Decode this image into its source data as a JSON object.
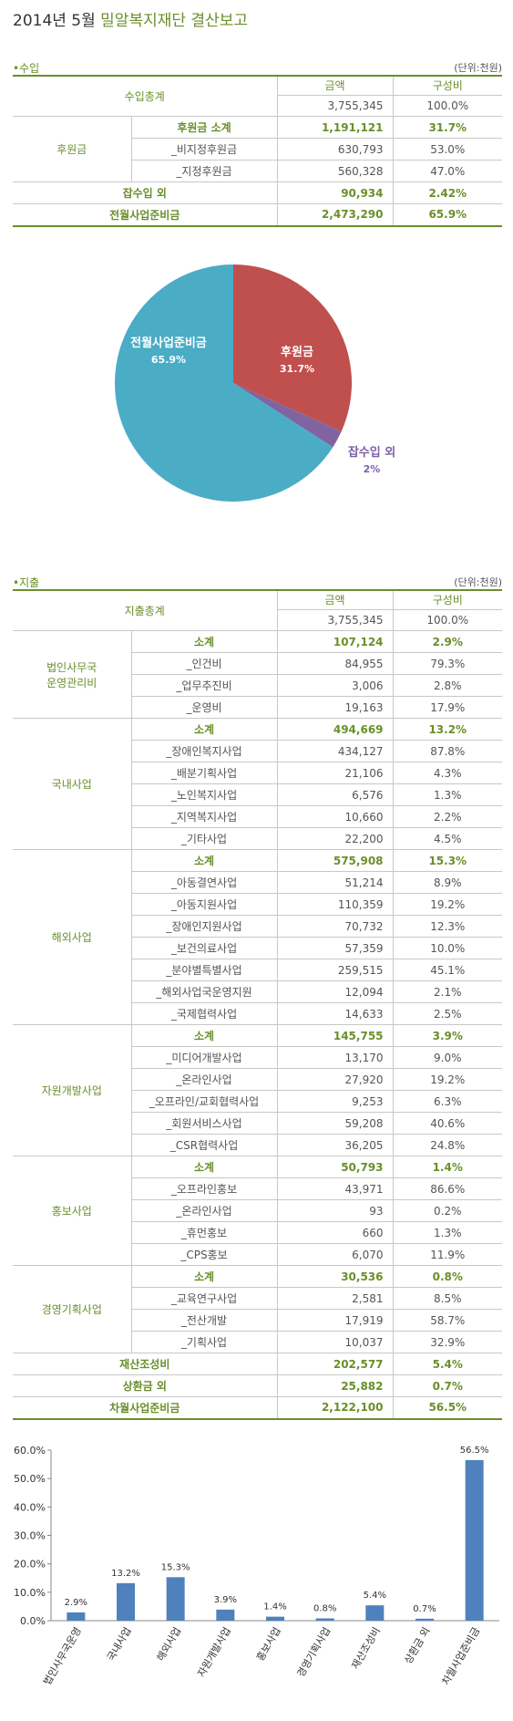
{
  "title_prefix": "2014년 5월 ",
  "title_accent": "밀알복지재단 결산보고",
  "income": {
    "section_label": "•수입",
    "unit": "(단위:천원)",
    "total_label": "수입총계",
    "amount_header": "금액",
    "ratio_header": "구성비",
    "total_amount": "3,755,345",
    "total_ratio": "100.0%",
    "group_label": "후원금",
    "rows": [
      {
        "label": "후원금 소계",
        "amount": "1,191,121",
        "ratio": "31.7%"
      },
      {
        "label": "_비지정후원금",
        "amount": "630,793",
        "ratio": "53.0%"
      },
      {
        "label": "_지정후원금",
        "amount": "560,328",
        "ratio": "47.0%"
      }
    ],
    "extra_rows": [
      {
        "label": "잡수입 외",
        "amount": "90,934",
        "ratio": "2.42%"
      },
      {
        "label": "전월사업준비금",
        "amount": "2,473,290",
        "ratio": "65.9%"
      }
    ]
  },
  "pie": {
    "slices": [
      {
        "name": "후원금",
        "pct_label": "31.7%",
        "value": 31.7,
        "color": "#c0504d"
      },
      {
        "name": "잡수입 외",
        "pct_label": "2%",
        "value": 2.4,
        "color": "#8064a2"
      },
      {
        "name": "전월사업준비금",
        "pct_label": "65.9%",
        "value": 65.9,
        "color": "#4bacc6"
      }
    ]
  },
  "expense": {
    "section_label": "•지출",
    "unit": "(단위:천원)",
    "total_label": "지출총계",
    "amount_header": "금액",
    "ratio_header": "구성비",
    "total_amount": "3,755,345",
    "total_ratio": "100.0%",
    "groups": [
      {
        "name": "법인사무국\n운영관리비",
        "rows": [
          {
            "label": "소계",
            "amount": "107,124",
            "ratio": "2.9%"
          },
          {
            "label": "_인건비",
            "amount": "84,955",
            "ratio": "79.3%"
          },
          {
            "label": "_업무추진비",
            "amount": "3,006",
            "ratio": "2.8%"
          },
          {
            "label": "_운영비",
            "amount": "19,163",
            "ratio": "17.9%"
          }
        ]
      },
      {
        "name": "국내사업",
        "rows": [
          {
            "label": "소계",
            "amount": "494,669",
            "ratio": "13.2%"
          },
          {
            "label": "_장애인복지사업",
            "amount": "434,127",
            "ratio": "87.8%"
          },
          {
            "label": "_배분기획사업",
            "amount": "21,106",
            "ratio": "4.3%"
          },
          {
            "label": "_노인복지사업",
            "amount": "6,576",
            "ratio": "1.3%"
          },
          {
            "label": "_지역복지사업",
            "amount": "10,660",
            "ratio": "2.2%"
          },
          {
            "label": "_기타사업",
            "amount": "22,200",
            "ratio": "4.5%"
          }
        ]
      },
      {
        "name": "해외사업",
        "rows": [
          {
            "label": "소계",
            "amount": "575,908",
            "ratio": "15.3%"
          },
          {
            "label": "_아동결연사업",
            "amount": "51,214",
            "ratio": "8.9%"
          },
          {
            "label": "_아동지원사업",
            "amount": "110,359",
            "ratio": "19.2%"
          },
          {
            "label": "_장애인지원사업",
            "amount": "70,732",
            "ratio": "12.3%"
          },
          {
            "label": "_보건의료사업",
            "amount": "57,359",
            "ratio": "10.0%"
          },
          {
            "label": "_분야별특별사업",
            "amount": "259,515",
            "ratio": "45.1%"
          },
          {
            "label": "_해외사업국운영지원",
            "amount": "12,094",
            "ratio": "2.1%"
          },
          {
            "label": "_국제협력사업",
            "amount": "14,633",
            "ratio": "2.5%"
          }
        ]
      },
      {
        "name": "자원개발사업",
        "rows": [
          {
            "label": "소계",
            "amount": "145,755",
            "ratio": "3.9%"
          },
          {
            "label": "_미디어개발사업",
            "amount": "13,170",
            "ratio": "9.0%"
          },
          {
            "label": "_온라인사업",
            "amount": "27,920",
            "ratio": "19.2%"
          },
          {
            "label": "_오프라인/교회협력사업",
            "amount": "9,253",
            "ratio": "6.3%"
          },
          {
            "label": "_회원서비스사업",
            "amount": "59,208",
            "ratio": "40.6%"
          },
          {
            "label": "_CSR협력사업",
            "amount": "36,205",
            "ratio": "24.8%"
          }
        ]
      },
      {
        "name": "홍보사업",
        "rows": [
          {
            "label": "소계",
            "amount": "50,793",
            "ratio": "1.4%"
          },
          {
            "label": "_오프라인홍보",
            "amount": "43,971",
            "ratio": "86.6%"
          },
          {
            "label": "_온라인사업",
            "amount": "93",
            "ratio": "0.2%"
          },
          {
            "label": "_휴먼홍보",
            "amount": "660",
            "ratio": "1.3%"
          },
          {
            "label": "_CPS홍보",
            "amount": "6,070",
            "ratio": "11.9%"
          }
        ]
      },
      {
        "name": "경영기획사업",
        "rows": [
          {
            "label": "소계",
            "amount": "30,536",
            "ratio": "0.8%"
          },
          {
            "label": "_교육연구사업",
            "amount": "2,581",
            "ratio": "8.5%"
          },
          {
            "label": "_전산개발",
            "amount": "17,919",
            "ratio": "58.7%"
          },
          {
            "label": "_기획사업",
            "amount": "10,037",
            "ratio": "32.9%"
          }
        ]
      }
    ],
    "extra_rows": [
      {
        "label": "재산조성비",
        "amount": "202,577",
        "ratio": "5.4%"
      },
      {
        "label": "상환금 외",
        "amount": "25,882",
        "ratio": "0.7%"
      },
      {
        "label": "차월사업준비금",
        "amount": "2,122,100",
        "ratio": "56.5%"
      }
    ]
  },
  "chart_data": [
    {
      "type": "pie",
      "slices": [
        {
          "label": "후원금",
          "value": 31.7
        },
        {
          "label": "잡수입 외",
          "value": 2.4
        },
        {
          "label": "전월사업준비금",
          "value": 65.9
        }
      ]
    },
    {
      "type": "bar",
      "categories": [
        "법인사무국운영",
        "국내사업",
        "해외사업",
        "자원개발사업",
        "홍보사업",
        "경영기획사업",
        "재산조성비",
        "상환금 외",
        "차월사업준비금"
      ],
      "values": [
        2.9,
        13.2,
        15.3,
        3.9,
        1.4,
        0.8,
        5.4,
        0.7,
        56.5
      ],
      "data_labels": [
        "2.9%",
        "13.2%",
        "15.3%",
        "3.9%",
        "1.4%",
        "0.8%",
        "5.4%",
        "0.7%",
        "56.5%"
      ],
      "ylim": [
        0,
        60
      ],
      "yticks": [
        "0.0%",
        "10.0%",
        "20.0%",
        "30.0%",
        "40.0%",
        "50.0%",
        "60.0%"
      ],
      "bar_color": "#4f81bd",
      "grid": false,
      "legend": "none"
    }
  ]
}
